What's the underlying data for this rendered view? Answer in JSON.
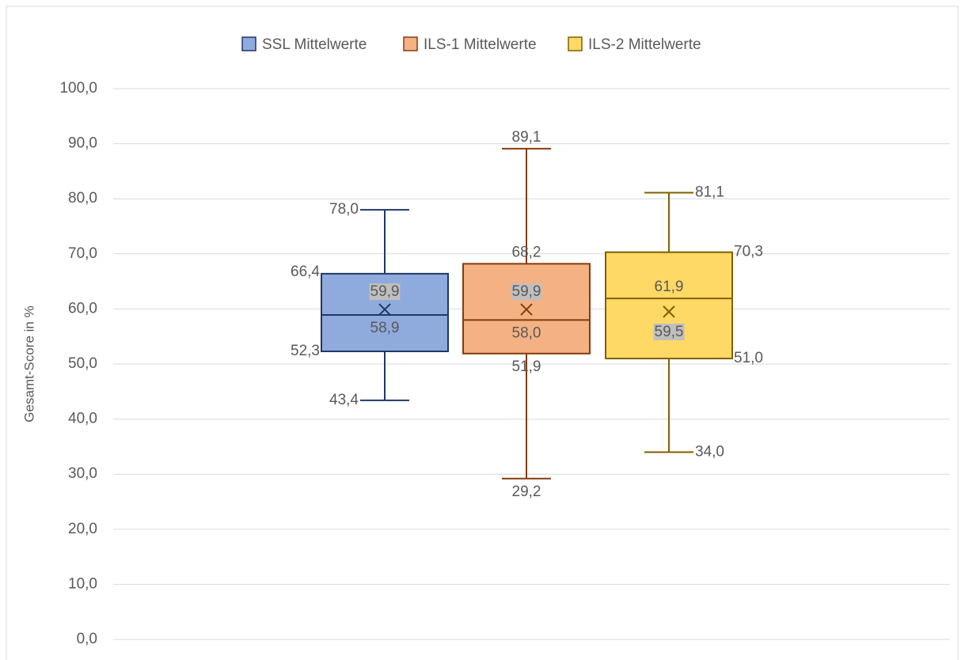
{
  "chart_data": {
    "type": "box",
    "y_label": "Gesamt-Score in %",
    "ylim": [
      0,
      100
    ],
    "yticks": [
      {
        "value": 0,
        "label": "0,0"
      },
      {
        "value": 10,
        "label": "10,0"
      },
      {
        "value": 20,
        "label": "20,0"
      },
      {
        "value": 30,
        "label": "30,0"
      },
      {
        "value": 40,
        "label": "40,0"
      },
      {
        "value": 50,
        "label": "50,0"
      },
      {
        "value": 60,
        "label": "60,0"
      },
      {
        "value": 70,
        "label": "70,0"
      },
      {
        "value": 80,
        "label": "80,0"
      },
      {
        "value": 90,
        "label": "90,0"
      },
      {
        "value": 100,
        "label": "100,0"
      }
    ],
    "grid": true,
    "legend": "top",
    "series": [
      {
        "name": "SSL Mittelwerte",
        "color": "#8faadc",
        "edge_color": "#203864",
        "values": {
          "min": 43.4,
          "q1": 52.3,
          "median": 58.9,
          "q3": 66.4,
          "max": 78.0,
          "mean": 59.9
        },
        "value_labels": {
          "min": "43,4",
          "q1": "52,3",
          "median": "58,9",
          "q3": "66,4",
          "max": "78,0",
          "mean": "59,9"
        }
      },
      {
        "name": "ILS-1 Mittelwerte",
        "color": "#f4b183",
        "edge_color": "#843c0c",
        "values": {
          "min": 29.2,
          "q1": 51.9,
          "median": 58.0,
          "q3": 68.2,
          "max": 89.1,
          "mean": 59.9
        },
        "value_labels": {
          "min": "29,2",
          "q1": "51,9",
          "median": "58,0",
          "q3": "68,2",
          "max": "89,1",
          "mean": "59,9"
        }
      },
      {
        "name": "ILS-2 Mittelwerte",
        "color": "#ffd966",
        "edge_color": "#7f6000",
        "values": {
          "min": 34.0,
          "q1": 51.0,
          "median": 61.9,
          "q3": 70.3,
          "max": 81.1,
          "mean": 59.5
        },
        "value_labels": {
          "min": "34,0",
          "q1": "51,0",
          "median": "61,9",
          "q3": "70,3",
          "max": "81,1",
          "mean": "59,5"
        }
      }
    ]
  }
}
